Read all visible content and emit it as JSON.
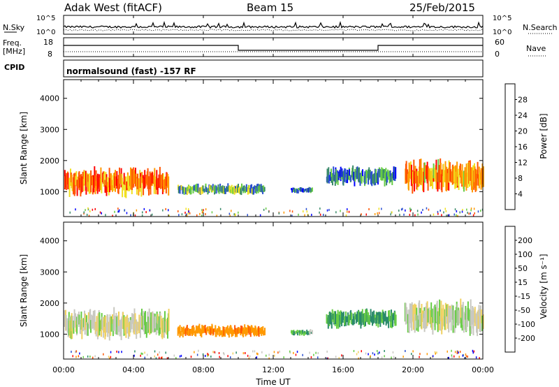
{
  "header": {
    "station": "Adak West (fitACF)",
    "beam": "Beam 15",
    "date": "25/Feb/2015"
  },
  "noise_panel": {
    "left_label": "N.Sky",
    "left_ticks": [
      "10^5",
      "10^0"
    ],
    "right_ticks": [
      "10^5",
      "10^0"
    ],
    "right_label": "N.Search"
  },
  "freq_panel": {
    "left_label_top": "Freq.",
    "left_label_bottom": "[MHz]",
    "left_ticks": [
      "18",
      "8"
    ],
    "right_ticks": [
      "60",
      "0"
    ],
    "right_label": "Nave"
  },
  "cpid_panel": {
    "label": "CPID",
    "text": "normalsound (fast) -157 RF"
  },
  "chart_data": [
    {
      "type": "heatmap",
      "name": "power",
      "ylabel": "Slant Range [km]",
      "yticks": [
        1000,
        2000,
        3000,
        4000
      ],
      "ylim": [
        200,
        4600
      ],
      "xlim": [
        0,
        24
      ],
      "colorbar_label": "Power [dB]",
      "colorbar_ticks": [
        "4",
        "8",
        "12",
        "16",
        "20",
        "24",
        "28"
      ],
      "colorbar_range": [
        0,
        32
      ],
      "colors": [
        "#0000ff",
        "#2a4fd0",
        "#3a8a6a",
        "#66cc44",
        "#f0e020",
        "#ff9900",
        "#ff5500",
        "#ff0000"
      ],
      "regions": [
        {
          "t0": 0.0,
          "t1": 6.0,
          "r0": 850,
          "r1": 1750,
          "level": 24
        },
        {
          "t0": 6.5,
          "t1": 11.5,
          "r0": 900,
          "r1": 1250,
          "level": 12
        },
        {
          "t0": 13.0,
          "t1": 14.2,
          "r0": 950,
          "r1": 1150,
          "level": 8
        },
        {
          "t0": 15.0,
          "t1": 19.0,
          "r0": 1200,
          "r1": 1800,
          "level": 8
        },
        {
          "t0": 19.5,
          "t1": 24.0,
          "r0": 1000,
          "r1": 2000,
          "level": 22
        }
      ]
    },
    {
      "type": "heatmap",
      "name": "velocity",
      "ylabel": "Slant Range [km]",
      "yticks": [
        1000,
        2000,
        3000,
        4000
      ],
      "ylim": [
        200,
        4600
      ],
      "xlim": [
        0,
        24
      ],
      "colorbar_label": "Velocity [m s⁻¹]",
      "colorbar_ticks": [
        "-200",
        "-100",
        "-50",
        "-15",
        "15",
        "50",
        "100",
        "200"
      ],
      "colors": [
        "#ff0000",
        "#ff5500",
        "#ff9900",
        "#f0d060",
        "#c8c8c0",
        "#66cc44",
        "#2a8a6a",
        "#2a4fd0",
        "#0000ff"
      ],
      "regions": [
        {
          "t0": 0.0,
          "t1": 6.0,
          "r0": 850,
          "r1": 1800,
          "vel": 0
        },
        {
          "t0": 6.5,
          "t1": 11.5,
          "r0": 900,
          "r1": 1300,
          "vel": -80
        },
        {
          "t0": 13.0,
          "t1": 14.2,
          "r0": 950,
          "r1": 1150,
          "vel": 30
        },
        {
          "t0": 15.0,
          "t1": 19.0,
          "r0": 1200,
          "r1": 1800,
          "vel": 60
        },
        {
          "t0": 19.5,
          "t1": 24.0,
          "r0": 1000,
          "r1": 2100,
          "vel": 0
        }
      ],
      "xticks": [
        "00:00",
        "04:00",
        "08:00",
        "12:00",
        "16:00",
        "20:00",
        "00:00"
      ],
      "xlabel": "Time UT"
    }
  ]
}
